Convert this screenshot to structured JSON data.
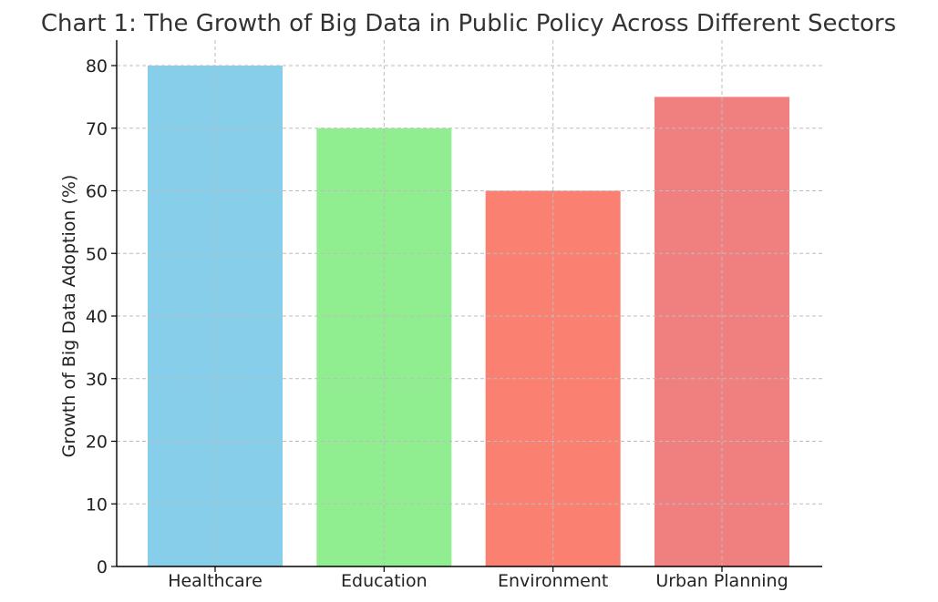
{
  "chart_data": {
    "type": "bar",
    "title": "Chart 1: The Growth of Big Data in Public Policy Across Different Sectors",
    "xlabel": "",
    "ylabel": "Growth of Big Data Adoption (%)",
    "categories": [
      "Healthcare",
      "Education",
      "Environment",
      "Urban Planning"
    ],
    "values": [
      80,
      70,
      60,
      75
    ],
    "colors": [
      "#87CEEB",
      "#90EE90",
      "#FA8072",
      "#F08080"
    ],
    "ylim": [
      0,
      80
    ],
    "yticks": [
      0,
      10,
      20,
      30,
      40,
      50,
      60,
      70,
      80
    ],
    "grid": true,
    "legend": "none"
  }
}
